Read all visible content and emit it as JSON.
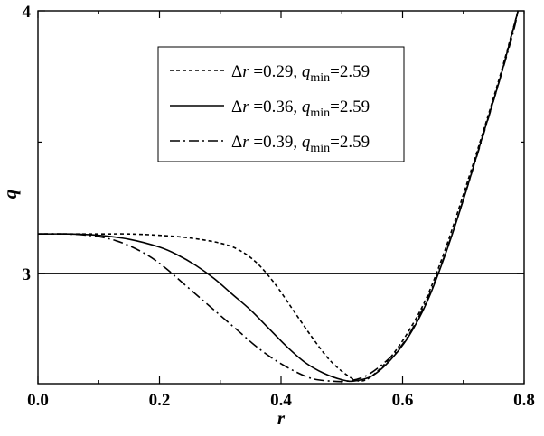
{
  "chart_data": {
    "type": "line",
    "xlabel": "r",
    "ylabel": "q",
    "xlim": [
      0.0,
      0.8
    ],
    "ylim": [
      2.58,
      4.0
    ],
    "x_ticks": [
      "0.0",
      "0.2",
      "0.4",
      "0.6",
      "0.8"
    ],
    "y_ticks": [
      "3",
      "4"
    ],
    "reference_line": {
      "y": 3.0
    },
    "legend_position": "top-center",
    "series": [
      {
        "name": "Δr =0.29, q_min=2.59",
        "legend": {
          "prefix": "Δ",
          "var": "r",
          "eq": " =0.29, ",
          "qvar": "q",
          "sub": "min",
          "tail": "=2.59"
        },
        "style": "dotted",
        "x": [
          0.0,
          0.05,
          0.1,
          0.15,
          0.2,
          0.25,
          0.3,
          0.33,
          0.36,
          0.39,
          0.42,
          0.45,
          0.48,
          0.51,
          0.53,
          0.55,
          0.58,
          0.61,
          0.64,
          0.67,
          0.7,
          0.73,
          0.76,
          0.79
        ],
        "y": [
          3.15,
          3.15,
          3.15,
          3.15,
          3.145,
          3.135,
          3.115,
          3.09,
          3.04,
          2.96,
          2.86,
          2.76,
          2.67,
          2.61,
          2.59,
          2.61,
          2.68,
          2.78,
          2.91,
          3.09,
          3.3,
          3.52,
          3.75,
          4.0
        ]
      },
      {
        "name": "Δr =0.36, q_min=2.59",
        "legend": {
          "prefix": "Δ",
          "var": "r",
          "eq": " =0.36, ",
          "qvar": "q",
          "sub": "min",
          "tail": "=2.59"
        },
        "style": "solid",
        "x": [
          0.0,
          0.05,
          0.1,
          0.15,
          0.2,
          0.23,
          0.26,
          0.29,
          0.32,
          0.35,
          0.38,
          0.41,
          0.44,
          0.47,
          0.5,
          0.52,
          0.55,
          0.58,
          0.61,
          0.64,
          0.67,
          0.7,
          0.73,
          0.76,
          0.79
        ],
        "y": [
          3.15,
          3.15,
          3.145,
          3.13,
          3.1,
          3.07,
          3.03,
          2.98,
          2.92,
          2.86,
          2.79,
          2.72,
          2.66,
          2.62,
          2.595,
          2.59,
          2.61,
          2.67,
          2.76,
          2.89,
          3.07,
          3.28,
          3.51,
          3.74,
          4.0
        ]
      },
      {
        "name": "Δr =0.39, q_min=2.59",
        "legend": {
          "prefix": "Δ",
          "var": "r",
          "eq": " =0.39, ",
          "qvar": "q",
          "sub": "min",
          "tail": "=2.59"
        },
        "style": "dash-dot",
        "x": [
          0.0,
          0.05,
          0.1,
          0.14,
          0.18,
          0.21,
          0.24,
          0.27,
          0.3,
          0.33,
          0.36,
          0.39,
          0.42,
          0.45,
          0.48,
          0.51,
          0.54,
          0.57,
          0.6,
          0.63,
          0.66,
          0.69,
          0.72,
          0.75,
          0.78,
          0.79
        ],
        "y": [
          3.15,
          3.15,
          3.14,
          3.115,
          3.07,
          3.02,
          2.96,
          2.9,
          2.84,
          2.78,
          2.72,
          2.67,
          2.63,
          2.6,
          2.59,
          2.59,
          2.61,
          2.66,
          2.73,
          2.85,
          3.01,
          3.21,
          3.43,
          3.66,
          3.9,
          4.0
        ]
      }
    ]
  }
}
